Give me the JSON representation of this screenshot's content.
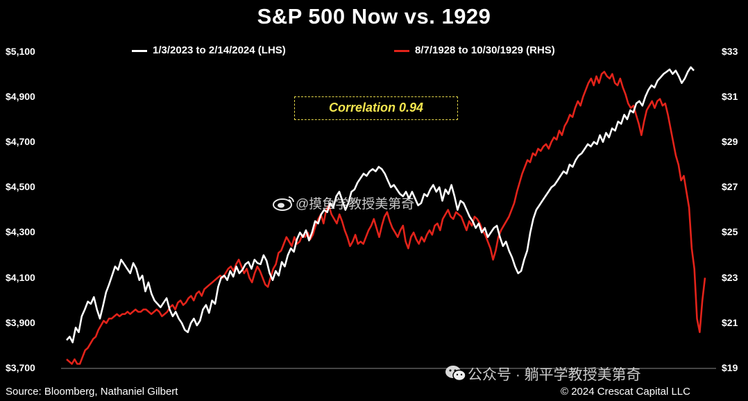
{
  "chart_data": {
    "type": "line",
    "title": "S&P 500 Now vs. 1929",
    "annotation": "Correlation 0.94",
    "left_axis": {
      "ticks": [
        "$5,100",
        "$4,900",
        "$4,700",
        "$4,500",
        "$4,300",
        "$4,100",
        "$3,900",
        "$3,700"
      ],
      "ylim": [
        3700,
        5100
      ]
    },
    "right_axis": {
      "ticks": [
        "$33",
        "$31",
        "$29",
        "$27",
        "$25",
        "$23",
        "$21",
        "$19"
      ],
      "ylim": [
        19,
        33
      ]
    },
    "series": [
      {
        "name": "1/3/2023 to 2/14/2024 (LHS)",
        "color": "#ffffff",
        "axis": "left",
        "values": [
          3825,
          3840,
          3815,
          3880,
          3860,
          3930,
          3960,
          3995,
          3985,
          4015,
          3960,
          3920,
          3975,
          4035,
          4070,
          4110,
          4150,
          4135,
          4180,
          4160,
          4140,
          4120,
          4165,
          4140,
          4090,
          4110,
          4040,
          4080,
          4030,
          4000,
          3985,
          3970,
          3990,
          4010,
          3960,
          3930,
          3950,
          3920,
          3900,
          3870,
          3860,
          3900,
          3920,
          3890,
          3910,
          3960,
          3980,
          3945,
          4000,
          3985,
          4060,
          4100,
          4110,
          4090,
          4130,
          4105,
          4150,
          4120,
          4135,
          4160,
          4170,
          4140,
          4180,
          4165,
          4160,
          4200,
          4175,
          4120,
          4090,
          4130,
          4110,
          4170,
          4150,
          4200,
          4230,
          4215,
          4270,
          4300,
          4280,
          4310,
          4265,
          4300,
          4350,
          4340,
          4380,
          4400,
          4390,
          4430,
          4410,
          4460,
          4480,
          4440,
          4400,
          4430,
          4480,
          4490,
          4520,
          4540,
          4560,
          4550,
          4570,
          4580,
          4570,
          4590,
          4580,
          4560,
          4530,
          4500,
          4510,
          4490,
          4470,
          4460,
          4480,
          4450,
          4480,
          4450,
          4420,
          4430,
          4470,
          4460,
          4490,
          4510,
          4480,
          4500,
          4440,
          4490,
          4470,
          4510,
          4460,
          4400,
          4440,
          4430,
          4400,
          4370,
          4350,
          4320,
          4340,
          4300,
          4320,
          4280,
          4300,
          4320,
          4330,
          4280,
          4240,
          4260,
          4220,
          4190,
          4150,
          4120,
          4130,
          4180,
          4220,
          4300,
          4360,
          4400,
          4420,
          4440,
          4460,
          4480,
          4500,
          4510,
          4530,
          4550,
          4570,
          4560,
          4600,
          4590,
          4620,
          4640,
          4650,
          4670,
          4690,
          4680,
          4700,
          4690,
          4730,
          4700,
          4740,
          4720,
          4760,
          4750,
          4790,
          4780,
          4820,
          4800,
          4840,
          4830,
          4870,
          4880,
          4860,
          4900,
          4930,
          4950,
          4940,
          4970,
          4985,
          5000,
          5010,
          5020,
          5000,
          5015,
          4990,
          4960,
          4980,
          5010,
          5030,
          5015
        ]
      },
      {
        "name": "8/7/1928 to 10/30/1929 (RHS)",
        "color": "#e2231a",
        "axis": "right",
        "values": [
          19.4,
          19.3,
          19.2,
          19.4,
          19.2,
          19.2,
          19.5,
          19.8,
          19.9,
          20.1,
          20.3,
          20.4,
          20.7,
          20.9,
          21.1,
          21.0,
          21.2,
          21.2,
          21.3,
          21.4,
          21.3,
          21.4,
          21.4,
          21.5,
          21.4,
          21.5,
          21.6,
          21.5,
          21.5,
          21.6,
          21.6,
          21.5,
          21.4,
          21.5,
          21.6,
          21.5,
          21.3,
          21.4,
          21.5,
          21.7,
          21.8,
          21.6,
          21.9,
          22.0,
          21.8,
          21.9,
          22.1,
          22.2,
          22.0,
          22.3,
          22.4,
          22.2,
          22.5,
          22.6,
          22.7,
          22.8,
          22.9,
          23.0,
          23.1,
          23.0,
          23.2,
          23.4,
          23.5,
          23.3,
          23.6,
          23.8,
          23.5,
          23.2,
          23.4,
          23.0,
          22.8,
          23.2,
          23.5,
          23.3,
          23.0,
          22.7,
          22.6,
          23.0,
          23.4,
          23.6,
          24.1,
          24.2,
          24.5,
          24.8,
          24.6,
          24.4,
          24.8,
          24.5,
          24.6,
          24.9,
          24.8,
          25.0,
          24.7,
          24.9,
          25.3,
          25.6,
          25.8,
          25.4,
          26.0,
          26.2,
          25.8,
          25.6,
          25.4,
          25.8,
          25.5,
          25.1,
          24.8,
          24.4,
          24.6,
          24.9,
          24.5,
          24.6,
          24.5,
          24.8,
          25.1,
          25.3,
          25.6,
          25.2,
          24.8,
          25.3,
          25.7,
          25.9,
          25.5,
          25.2,
          25.0,
          24.8,
          25.1,
          25.3,
          24.6,
          24.3,
          24.8,
          25.0,
          24.7,
          24.5,
          24.8,
          24.6,
          24.9,
          25.1,
          24.9,
          25.3,
          25.4,
          25.1,
          25.6,
          25.8,
          26.0,
          25.7,
          25.6,
          25.9,
          25.8,
          25.7,
          25.4,
          25.1,
          25.5,
          25.3,
          25.7,
          25.6,
          25.4,
          25.1,
          24.9,
          24.6,
          24.3,
          23.8,
          24.2,
          24.8,
          25.1,
          25.3,
          25.5,
          25.7,
          26.0,
          26.3,
          26.8,
          27.2,
          27.6,
          27.9,
          28.2,
          28.1,
          28.5,
          28.4,
          28.7,
          28.6,
          28.8,
          28.9,
          28.7,
          29.0,
          29.2,
          29.1,
          29.5,
          29.3,
          29.7,
          29.9,
          30.2,
          30.1,
          30.5,
          30.8,
          30.6,
          31.0,
          31.3,
          31.6,
          31.8,
          31.5,
          31.9,
          31.6,
          32.0,
          32.1,
          31.9,
          31.8,
          32.0,
          31.6,
          31.5,
          31.8,
          31.4,
          31.1,
          30.7,
          30.5,
          30.6,
          30.2,
          29.8,
          29.3,
          29.9,
          30.4,
          30.6,
          30.8,
          30.5,
          30.8,
          30.9,
          30.6,
          30.7,
          30.2,
          29.6,
          29.0,
          28.4,
          28.0,
          27.3,
          27.5,
          26.8,
          26.1,
          24.3,
          23.4,
          21.2,
          20.6,
          22.0,
          23.0
        ]
      }
    ]
  },
  "watermark_top": "@摸鱼学教授美第奇",
  "watermark_bottom": "公众号 · 躺平学教授美第奇",
  "footer": {
    "source": "Source: Bloomberg, Nathaniel Gilbert",
    "copyright": "© 2024 Crescat Capital LLC"
  },
  "icons": {
    "weibo": "weibo-logo-icon",
    "wechat": "wechat-logo-icon"
  }
}
